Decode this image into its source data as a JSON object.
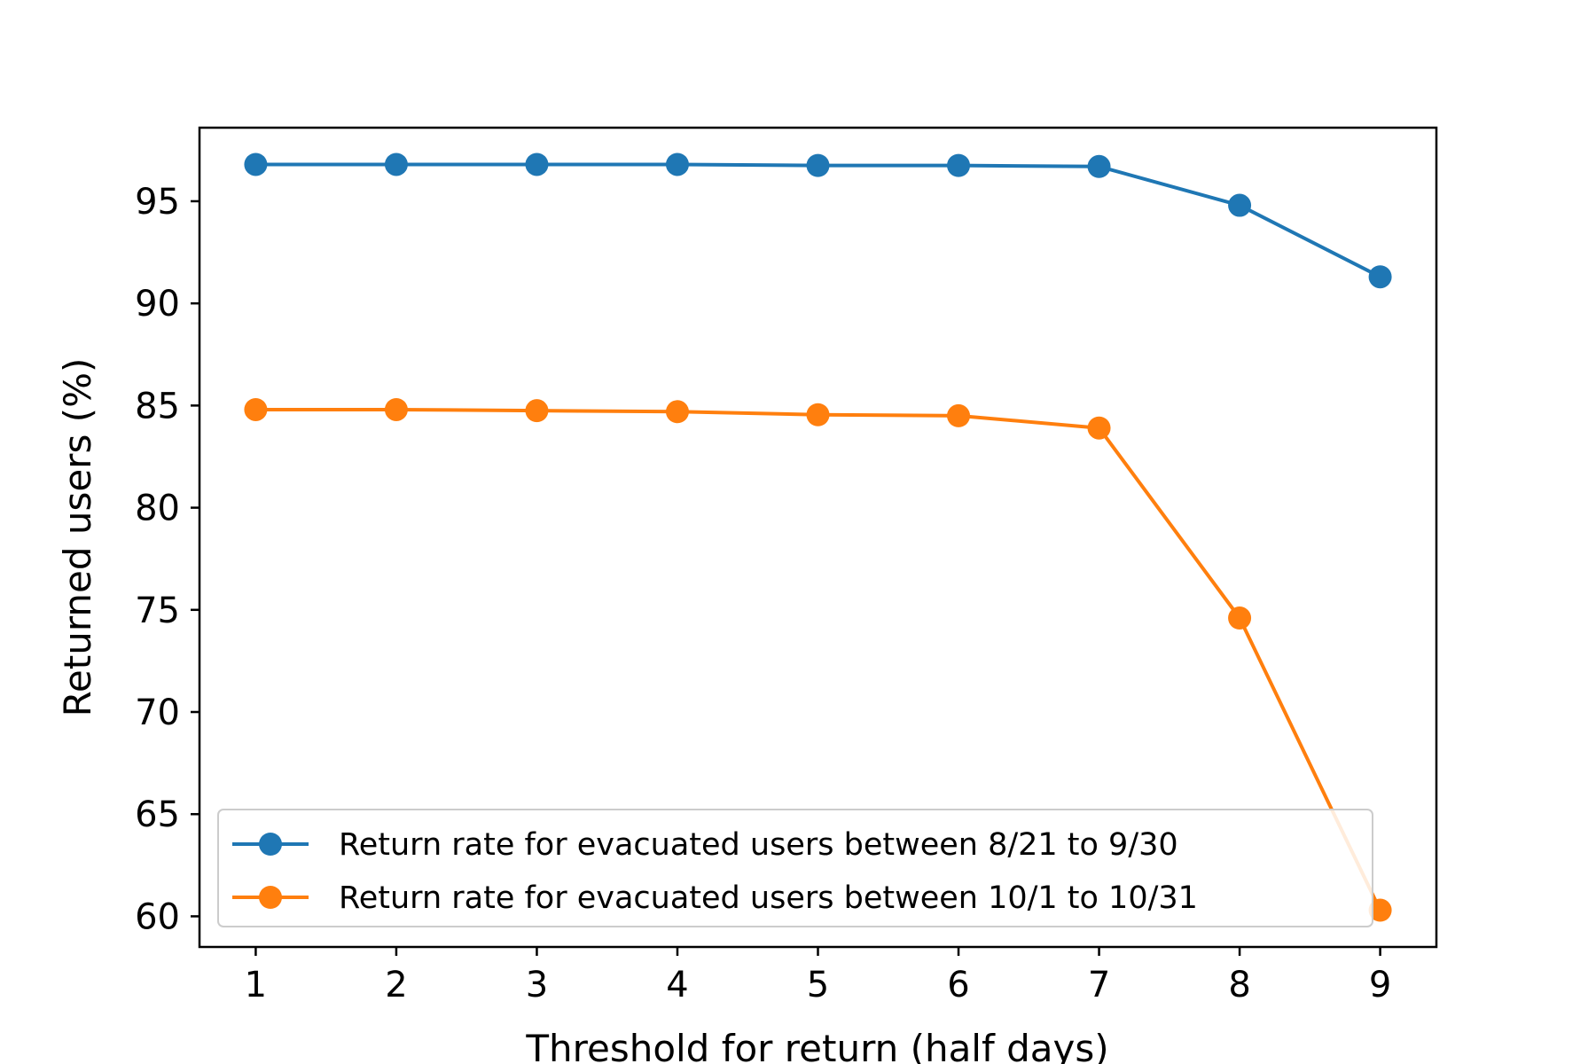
{
  "chart_data": {
    "type": "line",
    "title": "",
    "xlabel": "Threshold for return (half days)",
    "ylabel": "Returned users (%)",
    "x": [
      1,
      2,
      3,
      4,
      5,
      6,
      7,
      8,
      9
    ],
    "xlim": [
      0.6,
      9.4
    ],
    "ylim": [
      58.5,
      98.6
    ],
    "xticks": [
      1,
      2,
      3,
      4,
      5,
      6,
      7,
      8,
      9
    ],
    "yticks": [
      60,
      65,
      70,
      75,
      80,
      85,
      90,
      95
    ],
    "grid": false,
    "legend_position": "lower-left",
    "series": [
      {
        "name": "Return rate for evacuated users between 8/21 to 9/30",
        "color": "#1f77b4",
        "marker": "circle",
        "values": [
          96.8,
          96.8,
          96.8,
          96.8,
          96.75,
          96.75,
          96.7,
          94.8,
          91.3
        ]
      },
      {
        "name": "Return rate for evacuated users between 10/1 to 10/31",
        "color": "#ff7f0e",
        "marker": "circle",
        "values": [
          84.8,
          84.8,
          84.75,
          84.7,
          84.55,
          84.5,
          83.9,
          74.6,
          60.3
        ]
      }
    ]
  }
}
